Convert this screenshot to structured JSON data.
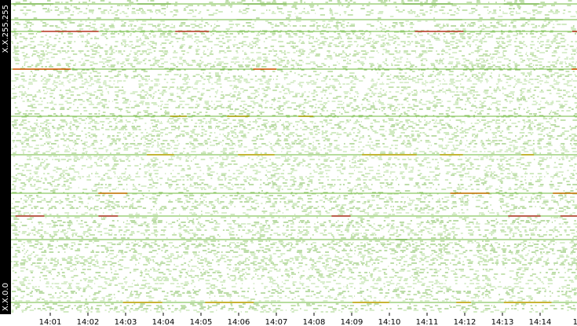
{
  "y_axis": {
    "top_label": "X.X.255.255",
    "bottom_label": "X.X.0.0"
  },
  "x_axis": {
    "labels": [
      "14:01",
      "14:02",
      "14:03",
      "14:04",
      "14:05",
      "14:06",
      "14:07",
      "14:08",
      "14:09",
      "14:10",
      "14:11",
      "14:12",
      "14:13",
      "14:14",
      "14"
    ]
  }
}
